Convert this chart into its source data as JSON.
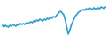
{
  "y_values": [
    22,
    20,
    22,
    21,
    20,
    22,
    21,
    23,
    22,
    21,
    23,
    22,
    24,
    23,
    24,
    23,
    25,
    24,
    25,
    26,
    25,
    27,
    26,
    28,
    27,
    29,
    28,
    27,
    29,
    28,
    30,
    29,
    31,
    30,
    32,
    31,
    33,
    35,
    37,
    38,
    36,
    34,
    28,
    20,
    12,
    16,
    22,
    26,
    30,
    33,
    35,
    37,
    38,
    39,
    40,
    39,
    41,
    40,
    42,
    41,
    40,
    42,
    41,
    40,
    42,
    41,
    43,
    42,
    41,
    43
  ],
  "line_color": "#2b9dc9",
  "bg_color": "#ffffff",
  "linewidth": 1.2
}
